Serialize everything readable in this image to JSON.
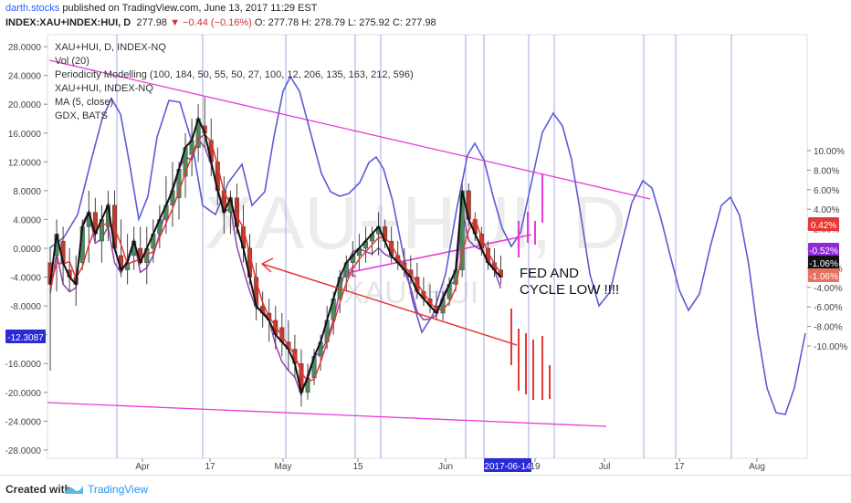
{
  "header": {
    "author": "darth.stocks",
    "published": "published on TradingView.com, June 13, 2017 11:29 EST",
    "symbol": "INDEX:XAU+INDEX:HUI, D",
    "last": "277.98",
    "change": "−0.44 (−0.16%)",
    "ohlc": "O: 277.78  H: 278.79  L: 275.92  C: 277.98"
  },
  "legend": [
    "XAU+HUI, D, INDEX-NQ",
    "Vol (20)",
    "Periodicity Modelling (100, 184, 50, 55, 50, 27, 100, 12, 206, 135, 163, 212, 596)",
    "XAU+HUI, INDEX-NQ",
    "MA (5, close)",
    "GDX, BATS"
  ],
  "watermark": "XAU+HUI, D",
  "annotation": [
    "FED AND",
    "CYCLE LOW !!!!"
  ],
  "footer": {
    "created": "Created with",
    "brand": "TradingView"
  },
  "colors": {
    "up": "#4a8a5c",
    "down": "#c0392b",
    "wave": "#5b5bd6",
    "trend": "#e83ad6",
    "arrow": "#e53935",
    "black_line": "#000000",
    "purple_line": "#8e44ad"
  },
  "chart_data": {
    "type": "line",
    "left_axis": {
      "ticks": [
        "28.0000",
        "24.0000",
        "20.0000",
        "16.0000",
        "12.0000",
        "8.0000",
        "4.0000",
        "0.0000",
        "-4.0000",
        "-8.0000",
        "-12.0000",
        "-16.0000",
        "-20.0000",
        "-24.0000",
        "-28.0000"
      ],
      "min": -28,
      "max": 28,
      "badge": "-12.3087"
    },
    "right_axis": {
      "ticks": [
        "10.00%",
        "8.00%",
        "6.00%",
        "4.00%",
        "2.00%",
        "0.00%",
        "-2.00%",
        "-4.00%",
        "-6.00%",
        "-8.00%",
        "-10.00%"
      ],
      "min": -10,
      "max": 10,
      "badges": [
        "0.42%",
        "-0.52%",
        "-1.06%",
        "-1.06%"
      ]
    },
    "x_axis": {
      "ticks": [
        "Apr",
        "17",
        "May",
        "15",
        "Jun",
        "19",
        "Jul",
        "17",
        "Aug"
      ],
      "badge": "2017-06-14"
    },
    "candles": [
      [
        -2,
        0,
        -17,
        -5
      ],
      [
        -1,
        4,
        -6,
        2
      ],
      [
        1,
        3,
        -5,
        -2
      ],
      [
        -3,
        0,
        -6,
        -4
      ],
      [
        -4,
        -1,
        -8,
        -5
      ],
      [
        -2,
        4,
        -3,
        3
      ],
      [
        3,
        8,
        -2,
        5
      ],
      [
        5,
        7,
        1,
        2
      ],
      [
        1,
        6,
        -2,
        4
      ],
      [
        3,
        8,
        1,
        6
      ],
      [
        6,
        8,
        0,
        0
      ],
      [
        -1,
        4,
        -4,
        -3
      ],
      [
        -3,
        2,
        -5,
        -2
      ],
      [
        -1,
        3,
        -3,
        1
      ],
      [
        0,
        3,
        -2,
        -2
      ],
      [
        -2,
        3,
        -5,
        0
      ],
      [
        0,
        4,
        -2,
        2
      ],
      [
        2,
        6,
        0,
        4
      ],
      [
        4,
        10,
        2,
        6
      ],
      [
        6,
        12,
        3,
        8
      ],
      [
        7,
        12,
        4,
        11
      ],
      [
        10,
        16,
        7,
        14
      ],
      [
        13,
        18,
        10,
        15
      ],
      [
        14,
        20,
        12,
        18
      ],
      [
        17,
        21,
        14,
        16
      ],
      [
        15,
        18,
        10,
        12
      ],
      [
        12,
        14,
        6,
        8
      ],
      [
        8,
        10,
        2,
        5
      ],
      [
        5,
        8,
        2,
        7
      ],
      [
        7,
        9,
        2,
        3
      ],
      [
        3,
        6,
        -2,
        0
      ],
      [
        0,
        2,
        -5,
        -4
      ],
      [
        -4,
        -2,
        -10,
        -8
      ],
      [
        -8,
        -6,
        -11,
        -9
      ],
      [
        -9,
        -7,
        -13,
        -10
      ],
      [
        -10,
        -8,
        -14,
        -12
      ],
      [
        -11,
        -9,
        -15,
        -13
      ],
      [
        -13,
        -10,
        -17,
        -14
      ],
      [
        -14,
        -12,
        -18,
        -16
      ],
      [
        -16,
        -14,
        -22,
        -20
      ],
      [
        -20,
        -16,
        -21,
        -18
      ],
      [
        -18,
        -14,
        -19,
        -15
      ],
      [
        -15,
        -12,
        -17,
        -13
      ],
      [
        -13,
        -8,
        -14,
        -10
      ],
      [
        -10,
        -6,
        -12,
        -7
      ],
      [
        -7,
        -3,
        -9,
        -4
      ],
      [
        -4,
        -1,
        -6,
        -2
      ],
      [
        -2,
        1,
        -4,
        -1
      ],
      [
        -1,
        2,
        -3,
        0
      ],
      [
        0,
        3,
        -2,
        1
      ],
      [
        1,
        3,
        -1,
        2
      ],
      [
        2,
        5,
        -1,
        3
      ],
      [
        3,
        4,
        0,
        1
      ],
      [
        1,
        3,
        -2,
        -1
      ],
      [
        -1,
        1,
        -3,
        -2
      ],
      [
        -2,
        0,
        -4,
        -3
      ],
      [
        -3,
        -1,
        -5,
        -4
      ],
      [
        -4,
        -2,
        -7,
        -6
      ],
      [
        -6,
        -4,
        -8,
        -7
      ],
      [
        -7,
        -5,
        -9,
        -8
      ],
      [
        -8,
        -6,
        -10,
        -9
      ],
      [
        -9,
        -6,
        -10,
        -7
      ],
      [
        -7,
        -4,
        -8,
        -5
      ],
      [
        -5,
        -2,
        -6,
        -3
      ],
      [
        -3,
        9,
        -4,
        8
      ],
      [
        8,
        9,
        3,
        4
      ],
      [
        4,
        5,
        1,
        2
      ],
      [
        2,
        3,
        -1,
        0
      ],
      [
        0,
        1,
        -3,
        -2
      ],
      [
        -2,
        0,
        -4,
        -3
      ],
      [
        -3,
        -1,
        -5,
        -4
      ]
    ]
  }
}
